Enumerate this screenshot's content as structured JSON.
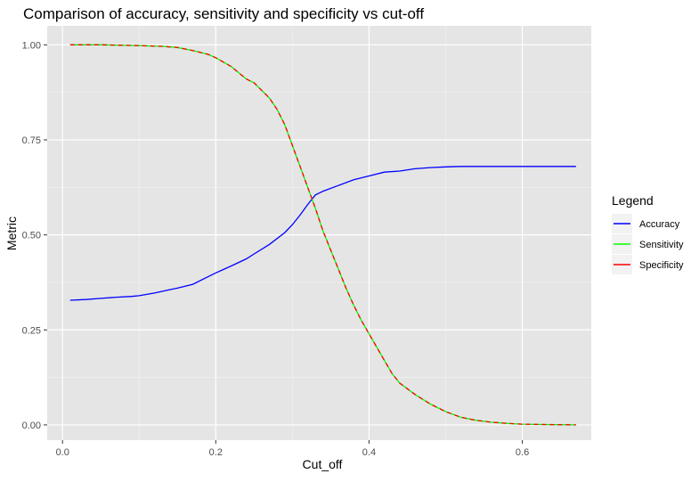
{
  "chart_data": {
    "type": "line",
    "title": "Comparison of accuracy, sensitivity and specificity vs cut-off",
    "xlabel": "Cut_off",
    "ylabel": "Metric",
    "xlim": [
      -0.02,
      0.69
    ],
    "ylim": [
      -0.04,
      1.05
    ],
    "x_ticks": [
      0.0,
      0.2,
      0.4,
      0.6
    ],
    "x_tick_labels": [
      "0.0",
      "0.2",
      "0.4",
      "0.6"
    ],
    "y_ticks": [
      0.0,
      0.25,
      0.5,
      0.75,
      1.0
    ],
    "y_tick_labels": [
      "0.00",
      "0.25",
      "0.50",
      "0.75",
      "1.00"
    ],
    "grid": true,
    "background": "#e5e5e5",
    "legend": {
      "title": "Legend",
      "placement": "right"
    },
    "series": [
      {
        "name": "Accuracy",
        "color": "#0000ff",
        "dash": "solid",
        "x": [
          0.01,
          0.03,
          0.05,
          0.07,
          0.09,
          0.1,
          0.12,
          0.14,
          0.15,
          0.17,
          0.19,
          0.2,
          0.22,
          0.24,
          0.25,
          0.27,
          0.29,
          0.3,
          0.31,
          0.32,
          0.33,
          0.34,
          0.36,
          0.38,
          0.4,
          0.42,
          0.44,
          0.46,
          0.48,
          0.5,
          0.52,
          0.55,
          0.58,
          0.6,
          0.63,
          0.67
        ],
        "y": [
          0.328,
          0.33,
          0.333,
          0.336,
          0.338,
          0.34,
          0.347,
          0.356,
          0.36,
          0.37,
          0.39,
          0.4,
          0.418,
          0.437,
          0.45,
          0.475,
          0.506,
          0.527,
          0.552,
          0.58,
          0.605,
          0.615,
          0.63,
          0.645,
          0.655,
          0.665,
          0.668,
          0.674,
          0.677,
          0.679,
          0.68,
          0.68,
          0.68,
          0.68,
          0.68,
          0.68
        ]
      },
      {
        "name": "Sensitivity",
        "color": "#00ff00",
        "dash": "solid",
        "x": [
          0.01,
          0.05,
          0.1,
          0.13,
          0.15,
          0.17,
          0.19,
          0.2,
          0.22,
          0.24,
          0.25,
          0.27,
          0.28,
          0.29,
          0.3,
          0.31,
          0.32,
          0.33,
          0.34,
          0.35,
          0.36,
          0.37,
          0.38,
          0.39,
          0.4,
          0.41,
          0.42,
          0.43,
          0.44,
          0.46,
          0.48,
          0.5,
          0.52,
          0.54,
          0.56,
          0.58,
          0.6,
          0.63,
          0.67
        ],
        "y": [
          1.0,
          1.0,
          0.998,
          0.996,
          0.993,
          0.985,
          0.975,
          0.966,
          0.943,
          0.91,
          0.9,
          0.86,
          0.83,
          0.79,
          0.735,
          0.68,
          0.625,
          0.57,
          0.51,
          0.46,
          0.41,
          0.36,
          0.315,
          0.275,
          0.24,
          0.205,
          0.17,
          0.135,
          0.11,
          0.08,
          0.055,
          0.035,
          0.02,
          0.012,
          0.007,
          0.004,
          0.002,
          0.001,
          0.0
        ]
      },
      {
        "name": "Specificity",
        "color": "#ff0000",
        "dash": "dashed",
        "x": [
          0.01,
          0.05,
          0.1,
          0.13,
          0.15,
          0.17,
          0.19,
          0.2,
          0.22,
          0.24,
          0.25,
          0.27,
          0.28,
          0.29,
          0.3,
          0.31,
          0.32,
          0.33,
          0.34,
          0.35,
          0.36,
          0.37,
          0.38,
          0.39,
          0.4,
          0.41,
          0.42,
          0.43,
          0.44,
          0.46,
          0.48,
          0.5,
          0.52,
          0.54,
          0.56,
          0.58,
          0.6,
          0.63,
          0.67
        ],
        "y": [
          1.0,
          1.0,
          0.998,
          0.996,
          0.993,
          0.985,
          0.975,
          0.966,
          0.943,
          0.91,
          0.9,
          0.86,
          0.83,
          0.79,
          0.735,
          0.68,
          0.625,
          0.57,
          0.51,
          0.46,
          0.41,
          0.36,
          0.315,
          0.275,
          0.24,
          0.205,
          0.17,
          0.135,
          0.11,
          0.08,
          0.055,
          0.035,
          0.02,
          0.012,
          0.007,
          0.004,
          0.002,
          0.001,
          0.0
        ]
      }
    ]
  }
}
